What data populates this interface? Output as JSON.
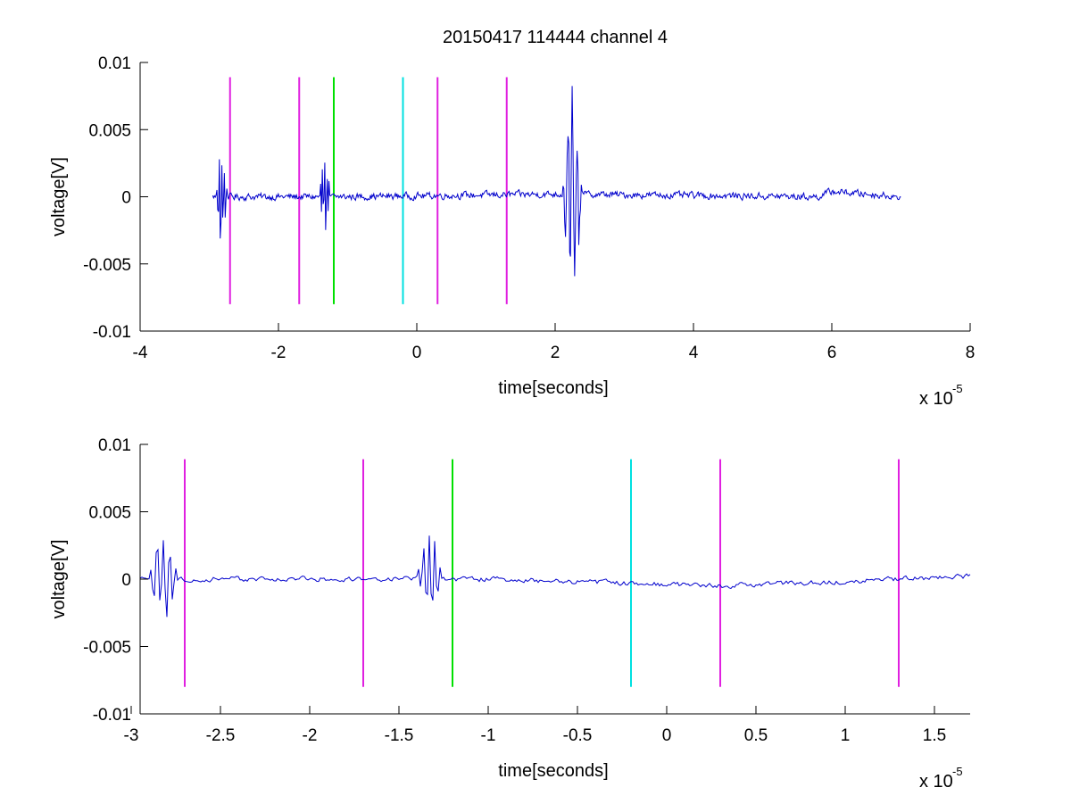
{
  "title": "20150417 114444 channel 4",
  "chart_data": [
    {
      "type": "line",
      "xlabel": "time[seconds]",
      "ylabel": "voltage[V]",
      "xlim": [
        -4e-05,
        8e-05
      ],
      "ylim": [
        -0.01,
        0.01
      ],
      "x_multiplier": {
        "base": "x 10",
        "exponent": "-5"
      },
      "x_ticks": [
        -4,
        -2,
        0,
        2,
        4,
        6,
        8
      ],
      "x_tick_labels": [
        "-4",
        "-2",
        "0",
        "2",
        "4",
        "6",
        "8"
      ],
      "y_ticks": [
        -0.01,
        -0.005,
        0,
        0.005,
        0.01
      ],
      "y_tick_labels": [
        "-0.01",
        "-0.005",
        "0",
        "0.005",
        "0.01"
      ],
      "grid": false,
      "signal": {
        "color": "#0000cc",
        "x_range": [
          -2.95e-05,
          7e-05
        ],
        "dt": 1.2e-07,
        "baseline": [
          [
            -2.95e-05,
            0
          ],
          [
            -1e-05,
            0
          ],
          [
            2e-05,
            0.0002
          ],
          [
            5.8e-05,
            0
          ],
          [
            6e-05,
            0.0004
          ],
          [
            7e-05,
            0
          ]
        ],
        "noise_amplitude": 0.0004,
        "bursts": [
          {
            "t": -2.9e-05,
            "duration": 1.6e-06,
            "peak": 0.0044,
            "trough": -0.0036
          },
          {
            "t": -1.4e-05,
            "duration": 1.4e-06,
            "peak": 0.0044,
            "trough": -0.003
          },
          {
            "t": 2.1e-05,
            "duration": 3e-06,
            "peak": 0.0079,
            "trough": -0.0073
          }
        ]
      },
      "markers": [
        {
          "x": -2.7e-05,
          "color": "#e020e0"
        },
        {
          "x": -1.7e-05,
          "color": "#e020e0"
        },
        {
          "x": -1.2e-05,
          "color": "#00e000"
        },
        {
          "x": -2e-06,
          "color": "#00e0e0"
        },
        {
          "x": 3e-06,
          "color": "#e020e0"
        },
        {
          "x": 1.3e-05,
          "color": "#e020e0"
        }
      ],
      "marker_span": [
        -0.008,
        0.0089
      ]
    },
    {
      "type": "line",
      "xlabel": "time[seconds]",
      "ylabel": "voltage[V]",
      "xlim": [
        -2.95e-05,
        1.7e-05
      ],
      "ylim": [
        -0.01,
        0.01
      ],
      "x_multiplier": {
        "base": "x 10",
        "exponent": "-5"
      },
      "x_ticks": [
        -3,
        -2.5,
        -2,
        -1.5,
        -1,
        -0.5,
        0,
        0.5,
        1,
        1.5
      ],
      "x_tick_labels": [
        "-3",
        "-2.5",
        "-2",
        "-1.5",
        "-1",
        "-0.5",
        "0",
        "0.5",
        "1",
        "1.5"
      ],
      "y_ticks": [
        -0.01,
        -0.005,
        0,
        0.005,
        0.01
      ],
      "y_tick_labels": [
        "-0.01",
        "-0.005",
        "0",
        "0.005",
        "0.01"
      ],
      "grid": false,
      "signal": {
        "color": "#0000cc",
        "x_range": [
          -2.95e-05,
          1.7e-05
        ],
        "dt": 1e-07,
        "baseline": [
          [
            -2.95e-05,
            0
          ],
          [
            -1e-05,
            0
          ],
          [
            3e-06,
            -0.0005
          ],
          [
            1.7e-05,
            0.0002
          ]
        ],
        "noise_amplitude": 0.0003,
        "bursts": [
          {
            "t": -2.9e-05,
            "duration": 1.6e-06,
            "peak": 0.0044,
            "trough": -0.0036
          },
          {
            "t": -1.4e-05,
            "duration": 1.4e-06,
            "peak": 0.0044,
            "trough": -0.003
          }
        ]
      },
      "markers": [
        {
          "x": -2.7e-05,
          "color": "#e020e0"
        },
        {
          "x": -1.7e-05,
          "color": "#e020e0"
        },
        {
          "x": -1.2e-05,
          "color": "#00e000"
        },
        {
          "x": -2e-06,
          "color": "#00e0e0"
        },
        {
          "x": 3e-06,
          "color": "#e020e0"
        },
        {
          "x": 1.3e-05,
          "color": "#e020e0"
        }
      ],
      "marker_span": [
        -0.008,
        0.0089
      ]
    }
  ]
}
